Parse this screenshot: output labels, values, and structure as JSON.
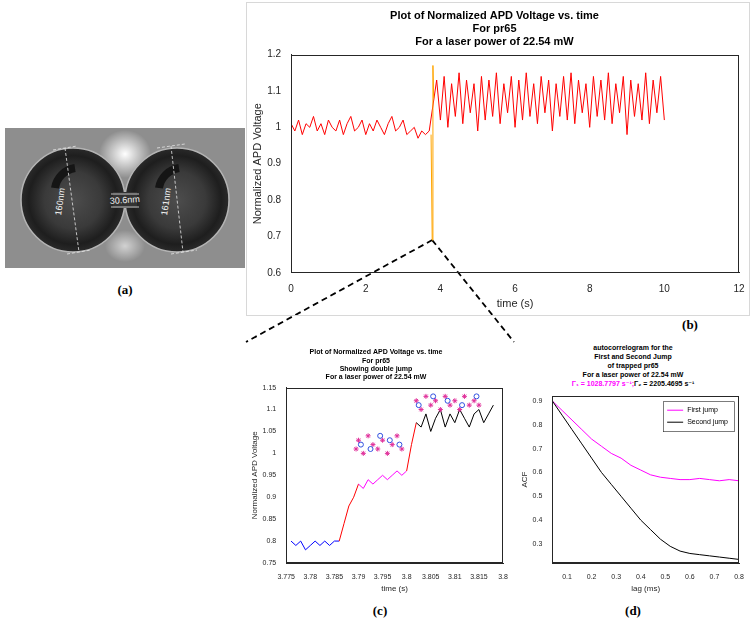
{
  "image_panel": {
    "panel_label": "(a)",
    "annotations": [
      "160nm",
      "30.6nm",
      "161nm"
    ]
  },
  "chart_data": [
    {
      "panel_label": "(b)",
      "type": "line",
      "title": [
        "Plot of Normalized APD Voltage vs. time",
        "For pr65",
        "For a laser power of 22.54 mW"
      ],
      "x_label": "time (s)",
      "y_label": "Normalized APD Voltage",
      "xlim": [
        0,
        12
      ],
      "xticks": [
        0,
        2,
        4,
        6,
        8,
        10,
        12
      ],
      "ylim": [
        0.6,
        1.2
      ],
      "yticks": [
        0.6,
        0.7,
        0.8,
        0.9,
        1,
        1.1,
        1.2
      ],
      "grid": false,
      "series": [
        {
          "color": "#ff0000",
          "line_style": "solid",
          "x": [
            0,
            0.1,
            0.2,
            0.3,
            0.4,
            0.5,
            0.6,
            0.7,
            0.8,
            0.9,
            1,
            1.1,
            1.2,
            1.3,
            1.4,
            1.5,
            1.6,
            1.7,
            1.8,
            1.9,
            2,
            2.1,
            2.2,
            2.3,
            2.4,
            2.5,
            2.6,
            2.7,
            2.8,
            2.9,
            3,
            3.1,
            3.2,
            3.3,
            3.4,
            3.5,
            3.6,
            3.7,
            3.9,
            4,
            4.1,
            4.2,
            4.3,
            4.4,
            4.5,
            4.6,
            4.7,
            4.8,
            4.9,
            5,
            5.1,
            5.2,
            5.3,
            5.4,
            5.5,
            5.6,
            5.7,
            5.8,
            5.9,
            6,
            6.1,
            6.2,
            6.3,
            6.4,
            6.5,
            6.6,
            6.7,
            6.8,
            6.9,
            7,
            7.1,
            7.2,
            7.3,
            7.4,
            7.5,
            7.6,
            7.7,
            7.8,
            7.9,
            8,
            8.1,
            8.2,
            8.3,
            8.4,
            8.5,
            8.6,
            8.7,
            8.8,
            8.9,
            9,
            9.1,
            9.2,
            9.3,
            9.4,
            9.5,
            9.6,
            9.7,
            9.8,
            9.9,
            10
          ],
          "values": [
            1.01,
            0.99,
            1.02,
            0.98,
            1.01,
            1,
            1.03,
            0.99,
            1.01,
            0.98,
            1.02,
            1,
            0.99,
            1.02,
            0.98,
            1.01,
            1.03,
            0.99,
            1,
            1.02,
            0.98,
            1.01,
            0.99,
            1.02,
            1,
            0.98,
            1.01,
            1.03,
            0.99,
            1,
            1.02,
            0.98,
            0.99,
            1,
            0.97,
            0.99,
            0.98,
            0.99,
            1.13,
            1.02,
            1.14,
            1,
            1.12,
            1.03,
            1.15,
            1.01,
            1.13,
            1.04,
            1.12,
            0.99,
            1.14,
            1.02,
            1.13,
            1.03,
            1.15,
            1.01,
            1.12,
            1.04,
            1.14,
            1,
            1.13,
            1.02,
            1.15,
            1.03,
            1.12,
            1.01,
            1.14,
            1.04,
            1.13,
            0.99,
            1.12,
            1.03,
            1.14,
            1.02,
            1.15,
            1.01,
            1.13,
            1.04,
            1.12,
            1,
            1.14,
            1.03,
            1.13,
            1.02,
            1.15,
            1.01,
            1.12,
            1.04,
            1.14,
            0.98,
            1.13,
            1.03,
            1.12,
            1.02,
            1.15,
            1.01,
            1.13,
            1.04,
            1.14,
            1.02
          ]
        },
        {
          "color": "#ffa500",
          "line_style": "solid",
          "x": [
            3.75,
            3.78,
            3.8,
            3.82
          ],
          "values": [
            0.98,
            0.69,
            1.17,
            1.08
          ]
        }
      ]
    },
    {
      "panel_label": "(c)",
      "type": "line",
      "title": [
        "Plot of Normalized APD Voltage vs. time",
        "For pr65",
        "Showing double jump",
        "For a laser power of 22.54 mW"
      ],
      "x_label": "time (s)",
      "y_label": "Normalized APD Voltage",
      "xlim": [
        3.775,
        3.82
      ],
      "xticks": [
        3.775,
        3.78,
        3.785,
        3.79,
        3.795,
        3.8,
        3.805,
        3.81,
        3.815,
        {
          "value": 3.82,
          "label": "3.8"
        }
      ],
      "ylim": [
        0.75,
        1.15
      ],
      "yticks": [
        0.75,
        0.8,
        0.85,
        0.9,
        0.95,
        1,
        1.05,
        1.1,
        1.15
      ],
      "grid": false,
      "series": [
        {
          "color": "#0000ff",
          "line_style": "solid",
          "x": [
            3.776,
            3.777,
            3.778,
            3.779,
            3.78,
            3.781,
            3.782,
            3.783,
            3.784,
            3.785,
            3.786
          ],
          "values": [
            0.8,
            0.79,
            0.8,
            0.78,
            0.79,
            0.8,
            0.79,
            0.8,
            0.79,
            0.8,
            0.8
          ]
        },
        {
          "color": "#ff0000",
          "line_style": "solid",
          "x": [
            3.786,
            3.787,
            3.788,
            3.789,
            3.79
          ],
          "values": [
            0.8,
            0.84,
            0.88,
            0.9,
            0.93
          ]
        },
        {
          "color": "#ff00ff",
          "line_style": "solid",
          "x": [
            3.79,
            3.791,
            3.792,
            3.793,
            3.794,
            3.795,
            3.796,
            3.797,
            3.798,
            3.799,
            3.8
          ],
          "values": [
            0.93,
            0.92,
            0.94,
            0.93,
            0.94,
            0.95,
            0.94,
            0.95,
            0.96,
            0.95,
            0.96
          ]
        },
        {
          "color": "#ff0000",
          "line_style": "solid",
          "x": [
            3.8,
            3.801,
            3.802
          ],
          "values": [
            0.96,
            1.02,
            1.07
          ]
        },
        {
          "color": "#000000",
          "line_style": "solid",
          "x": [
            3.802,
            3.803,
            3.804,
            3.805,
            3.806,
            3.807,
            3.808,
            3.809,
            3.81,
            3.811,
            3.812,
            3.813,
            3.814,
            3.815,
            3.816,
            3.817,
            3.818
          ],
          "values": [
            1.07,
            1.06,
            1.09,
            1.05,
            1.08,
            1.1,
            1.06,
            1.09,
            1.07,
            1.1,
            1.08,
            1.06,
            1.09,
            1.1,
            1.07,
            1.09,
            1.11
          ]
        },
        {
          "color": "#e0309a",
          "line_style": "none",
          "marker": "star",
          "x": [
            3.7895,
            3.79,
            3.791,
            3.792,
            3.793,
            3.794,
            3.795,
            3.796,
            3.797,
            3.798,
            3.799,
            3.802,
            3.803,
            3.804,
            3.805,
            3.806,
            3.807,
            3.808,
            3.809,
            3.81,
            3.811,
            3.812,
            3.813,
            3.814,
            3.815
          ],
          "values": [
            1.01,
            1.03,
            1,
            1.04,
            1.02,
            1.01,
            1.03,
            1,
            1.02,
            1.04,
            1.01,
            1.12,
            1.1,
            1.13,
            1.11,
            1.12,
            1.1,
            1.13,
            1.11,
            1.12,
            1.1,
            1.13,
            1.11,
            1.12,
            1.11
          ]
        },
        {
          "color": "#3050e0",
          "line_style": "none",
          "marker": "circle",
          "x": [
            3.7905,
            3.7925,
            3.7945,
            3.7965,
            3.7985,
            3.8025,
            3.8055,
            3.8085,
            3.8115,
            3.8145
          ],
          "values": [
            1.02,
            1.01,
            1.04,
            1.03,
            1.02,
            1.11,
            1.13,
            1.12,
            1.11,
            1.13
          ]
        }
      ]
    },
    {
      "panel_label": "(d)",
      "type": "line",
      "title": [
        "autocorrelogram for the",
        "First and Second Jump",
        "of trapped pr65",
        "For a laser power of 22.54 mW"
      ],
      "subtitle": [
        {
          "text": "Γ₁ = 1028.7797 s⁻¹;",
          "color": "#ff00ff"
        },
        {
          "text": "Γ₂ = 2205.4695 s⁻¹",
          "color": "#000000"
        }
      ],
      "x_label": "lag (ms)",
      "y_label": "ACF",
      "xlim": [
        0.04,
        0.8
      ],
      "xticks": [
        0.1,
        0.2,
        0.3,
        0.4,
        0.5,
        0.6,
        0.7,
        0.8
      ],
      "ylim": [
        0.22,
        0.92
      ],
      "yticks": [
        0.3,
        0.4,
        0.5,
        0.6,
        0.7,
        0.8,
        0.9
      ],
      "grid": false,
      "legend": "upper right",
      "series": [
        {
          "name": "First jump",
          "color": "#ff00ff",
          "line_style": "solid",
          "x": [
            0.04,
            0.08,
            0.12,
            0.16,
            0.2,
            0.24,
            0.28,
            0.32,
            0.36,
            0.4,
            0.44,
            0.48,
            0.52,
            0.56,
            0.6,
            0.64,
            0.68,
            0.72,
            0.76,
            0.8
          ],
          "values": [
            0.9,
            0.86,
            0.82,
            0.78,
            0.74,
            0.71,
            0.68,
            0.66,
            0.63,
            0.61,
            0.59,
            0.58,
            0.575,
            0.57,
            0.57,
            0.575,
            0.57,
            0.565,
            0.57,
            0.565
          ]
        },
        {
          "name": "Second jump",
          "color": "#000000",
          "line_style": "solid",
          "x": [
            0.04,
            0.08,
            0.12,
            0.16,
            0.2,
            0.24,
            0.28,
            0.32,
            0.36,
            0.4,
            0.44,
            0.48,
            0.52,
            0.56,
            0.6,
            0.64,
            0.68,
            0.72,
            0.76,
            0.8
          ],
          "values": [
            0.9,
            0.84,
            0.78,
            0.72,
            0.66,
            0.6,
            0.55,
            0.5,
            0.45,
            0.4,
            0.36,
            0.32,
            0.29,
            0.27,
            0.26,
            0.255,
            0.25,
            0.245,
            0.24,
            0.235
          ]
        }
      ]
    }
  ]
}
